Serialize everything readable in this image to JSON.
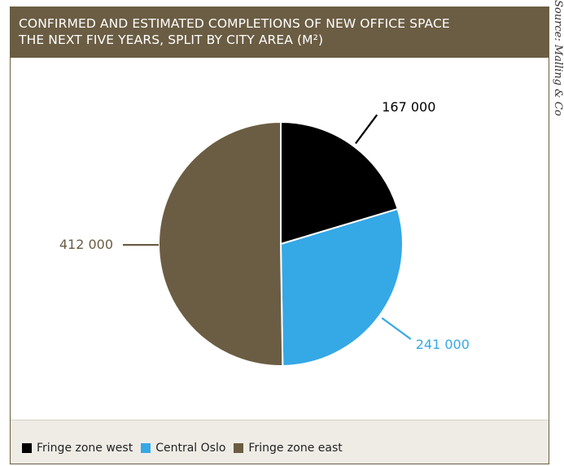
{
  "header": {
    "title_line1": "CONFIRMED AND ESTIMATED COMPLETIONS OF NEW OFFICE SPACE",
    "title_line2": "THE NEXT FIVE YEARS, SPLIT BY CITY AREA (M²)"
  },
  "source": "Source: Malling & Co",
  "legend": {
    "items": [
      {
        "label": "Fringe zone west",
        "color": "#000000"
      },
      {
        "label": "Central Oslo",
        "color": "#35a8e6"
      },
      {
        "label": "Fringe zone east",
        "color": "#6b5d43"
      }
    ]
  },
  "chart_data": {
    "type": "pie",
    "title": "CONFIRMED AND ESTIMATED COMPLETIONS OF NEW OFFICE SPACE THE NEXT FIVE YEARS, SPLIT BY CITY AREA (M²)",
    "slices": [
      {
        "name": "Fringe zone west",
        "value": 167000,
        "label": "167 000",
        "color": "#000000"
      },
      {
        "name": "Central Oslo",
        "value": 241000,
        "label": "241 000",
        "color": "#35a8e6"
      },
      {
        "name": "Fringe zone east",
        "value": 412000,
        "label": "412 000",
        "color": "#6b5d43"
      }
    ],
    "start_angle_deg": 0,
    "direction": "clockwise",
    "legend_position": "bottom"
  }
}
